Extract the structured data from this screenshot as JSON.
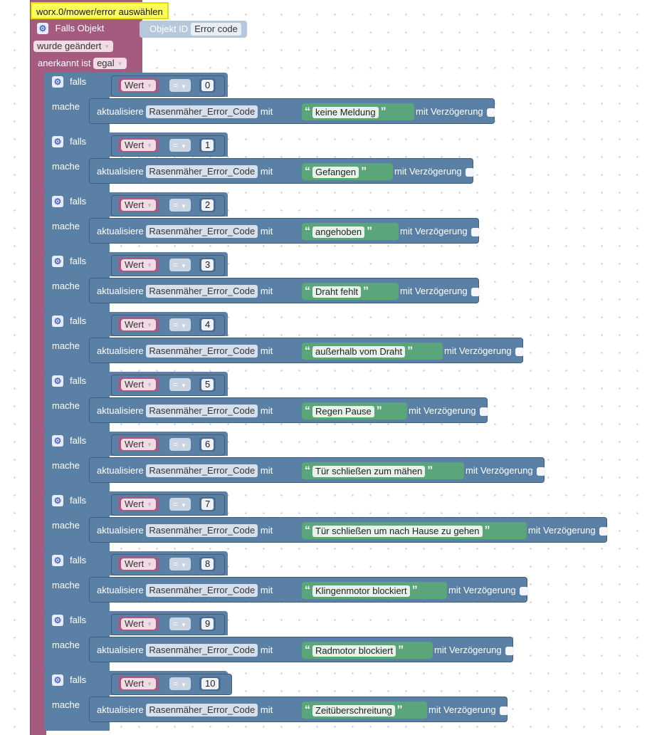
{
  "event": {
    "object_selector": "worx.0/mower/error auswählen",
    "if_object_label": "Falls Objekt",
    "object_id_label": "Objekt ID",
    "object_id_value": "Error code",
    "changed_label": "wurde geändert",
    "ack_label": "anerkannt ist",
    "ack_value": "egal"
  },
  "labels": {
    "if": "falls",
    "do": "mache",
    "value": "Wert",
    "operator": "=",
    "update": "aktualisiere",
    "variable": "Rasenmäher_Error_Code",
    "with": "mit",
    "delay": "mit Verzögerung",
    "open_quote": "“",
    "close_quote": "”"
  },
  "cases": [
    {
      "code": "0",
      "message": "keine Meldung"
    },
    {
      "code": "1",
      "message": "Gefangen"
    },
    {
      "code": "2",
      "message": "angehoben"
    },
    {
      "code": "3",
      "message": "Draht fehlt"
    },
    {
      "code": "4",
      "message": "außerhalb vom Draht"
    },
    {
      "code": "5",
      "message": "Regen Pause"
    },
    {
      "code": "6",
      "message": "Tür schließen zum mähen"
    },
    {
      "code": "7",
      "message": "Tür schließen um nach Hause zu gehen"
    },
    {
      "code": "8",
      "message": "Klingenmotor blockiert"
    },
    {
      "code": "9",
      "message": "Radmotor blockiert"
    },
    {
      "code": "10",
      "message": "Zeitüberschreitung"
    }
  ],
  "colors": {
    "event_block": "#a55b80",
    "logic_block": "#5b80a5",
    "text_block": "#5ba57b",
    "highlight": "#ffff5a"
  }
}
